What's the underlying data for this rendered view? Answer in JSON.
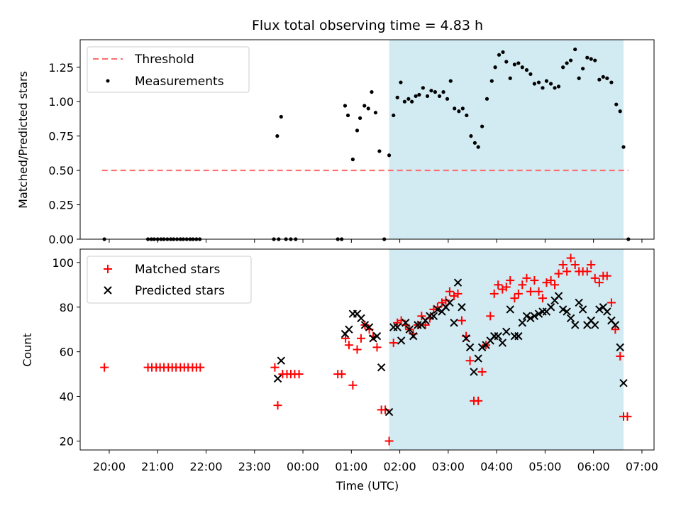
{
  "title": "Flux total observing time = 4.83 h",
  "colors": {
    "threshold": "#ff6b6b",
    "measurement": "#000000",
    "matched": "#ff0000",
    "predicted": "#000000",
    "span": "#add8e6"
  },
  "chart_data": [
    {
      "type": "scatter",
      "title": "Flux total observing time = 4.83 h",
      "xlabel": "",
      "ylabel": "Matched/Predicted stars",
      "x_unit": "hours relative to 00:00 UTC",
      "xlim": [
        -4.6,
        7.25
      ],
      "ylim": [
        0,
        1.45
      ],
      "yticks": [
        "0.00",
        "0.25",
        "0.50",
        "0.75",
        "1.00",
        "1.25"
      ],
      "xtick_values": [
        -4,
        -3,
        -2,
        -1,
        0,
        1,
        2,
        3,
        4,
        5,
        6,
        7
      ],
      "highlight_span": [
        1.78,
        6.62
      ],
      "legend_position": "upper left",
      "threshold": {
        "name": "Threshold",
        "value": 0.5,
        "x_range": [
          -4.15,
          6.72
        ]
      },
      "series": [
        {
          "name": "Measurements",
          "points": [
            [
              -4.1,
              0
            ],
            [
              -3.2,
              0
            ],
            [
              -3.13,
              0
            ],
            [
              -3.07,
              0
            ],
            [
              -3.0,
              0
            ],
            [
              -2.93,
              0
            ],
            [
              -2.87,
              0
            ],
            [
              -2.8,
              0
            ],
            [
              -2.73,
              0
            ],
            [
              -2.67,
              0
            ],
            [
              -2.6,
              0
            ],
            [
              -2.53,
              0
            ],
            [
              -2.47,
              0
            ],
            [
              -2.4,
              0
            ],
            [
              -2.33,
              0
            ],
            [
              -2.27,
              0
            ],
            [
              -2.2,
              0
            ],
            [
              -2.13,
              0
            ],
            [
              -0.6,
              0
            ],
            [
              -0.5,
              0
            ],
            [
              -0.35,
              0
            ],
            [
              -0.25,
              0
            ],
            [
              -0.15,
              0
            ],
            [
              0.72,
              0
            ],
            [
              0.8,
              0
            ],
            [
              1.68,
              0
            ],
            [
              6.72,
              0
            ],
            [
              -0.53,
              0.75
            ],
            [
              -0.45,
              0.89
            ],
            [
              0.87,
              0.97
            ],
            [
              0.93,
              0.9
            ],
            [
              1.03,
              0.58
            ],
            [
              1.12,
              0.79
            ],
            [
              1.18,
              0.88
            ],
            [
              1.27,
              0.97
            ],
            [
              1.35,
              0.95
            ],
            [
              1.42,
              1.07
            ],
            [
              1.5,
              0.92
            ],
            [
              1.58,
              0.64
            ],
            [
              1.78,
              0.61
            ],
            [
              1.87,
              0.9
            ],
            [
              1.95,
              1.03
            ],
            [
              2.02,
              1.14
            ],
            [
              2.1,
              1.0
            ],
            [
              2.18,
              1.02
            ],
            [
              2.25,
              1.0
            ],
            [
              2.33,
              1.04
            ],
            [
              2.4,
              1.05
            ],
            [
              2.48,
              1.1
            ],
            [
              2.57,
              1.04
            ],
            [
              2.65,
              1.08
            ],
            [
              2.73,
              1.07
            ],
            [
              2.82,
              1.04
            ],
            [
              2.9,
              1.07
            ],
            [
              2.98,
              1.02
            ],
            [
              3.05,
              1.15
            ],
            [
              3.13,
              0.95
            ],
            [
              3.22,
              0.93
            ],
            [
              3.3,
              0.95
            ],
            [
              3.38,
              0.9
            ],
            [
              3.47,
              0.75
            ],
            [
              3.55,
              0.7
            ],
            [
              3.62,
              0.67
            ],
            [
              3.7,
              0.82
            ],
            [
              3.8,
              1.02
            ],
            [
              3.9,
              1.15
            ],
            [
              3.97,
              1.25
            ],
            [
              4.05,
              1.34
            ],
            [
              4.13,
              1.36
            ],
            [
              4.2,
              1.29
            ],
            [
              4.28,
              1.17
            ],
            [
              4.37,
              1.27
            ],
            [
              4.45,
              1.28
            ],
            [
              4.53,
              1.25
            ],
            [
              4.62,
              1.23
            ],
            [
              4.7,
              1.2
            ],
            [
              4.78,
              1.13
            ],
            [
              4.87,
              1.14
            ],
            [
              4.95,
              1.1
            ],
            [
              5.03,
              1.15
            ],
            [
              5.12,
              1.13
            ],
            [
              5.2,
              1.1
            ],
            [
              5.28,
              1.11
            ],
            [
              5.37,
              1.25
            ],
            [
              5.45,
              1.28
            ],
            [
              5.53,
              1.3
            ],
            [
              5.62,
              1.38
            ],
            [
              5.7,
              1.17
            ],
            [
              5.78,
              1.24
            ],
            [
              5.87,
              1.32
            ],
            [
              5.95,
              1.31
            ],
            [
              6.03,
              1.3
            ],
            [
              6.12,
              1.16
            ],
            [
              6.2,
              1.18
            ],
            [
              6.28,
              1.17
            ],
            [
              6.37,
              1.14
            ],
            [
              6.47,
              0.98
            ],
            [
              6.55,
              0.93
            ],
            [
              6.62,
              0.67
            ]
          ]
        }
      ]
    },
    {
      "type": "scatter",
      "xlabel": "Time (UTC)",
      "ylabel": "Count",
      "x_unit": "hours relative to 00:00 UTC",
      "xlim": [
        -4.6,
        7.25
      ],
      "ylim": [
        16,
        106
      ],
      "yticks": [
        "20",
        "40",
        "60",
        "80",
        "100"
      ],
      "xticks": [
        "20:00",
        "21:00",
        "22:00",
        "23:00",
        "00:00",
        "01:00",
        "02:00",
        "03:00",
        "04:00",
        "05:00",
        "06:00",
        "07:00"
      ],
      "xtick_values": [
        -4,
        -3,
        -2,
        -1,
        0,
        1,
        2,
        3,
        4,
        5,
        6,
        7
      ],
      "highlight_span": [
        1.78,
        6.62
      ],
      "legend_position": "upper left",
      "series": [
        {
          "name": "Matched stars",
          "marker": "+",
          "points": [
            [
              -4.1,
              53
            ],
            [
              -3.2,
              53
            ],
            [
              -3.12,
              53
            ],
            [
              -3.03,
              53
            ],
            [
              -2.95,
              53
            ],
            [
              -2.87,
              53
            ],
            [
              -2.78,
              53
            ],
            [
              -2.7,
              53
            ],
            [
              -2.62,
              53
            ],
            [
              -2.53,
              53
            ],
            [
              -2.45,
              53
            ],
            [
              -2.37,
              53
            ],
            [
              -2.28,
              53
            ],
            [
              -2.2,
              53
            ],
            [
              -2.12,
              53
            ],
            [
              -0.58,
              53
            ],
            [
              -0.52,
              36
            ],
            [
              -0.42,
              50
            ],
            [
              -0.33,
              50
            ],
            [
              -0.25,
              50
            ],
            [
              -0.17,
              50
            ],
            [
              -0.08,
              50
            ],
            [
              0.72,
              50
            ],
            [
              0.8,
              50
            ],
            [
              0.88,
              66
            ],
            [
              0.95,
              63
            ],
            [
              1.03,
              45
            ],
            [
              1.12,
              61
            ],
            [
              1.2,
              66
            ],
            [
              1.28,
              72
            ],
            [
              1.37,
              70
            ],
            [
              1.45,
              67
            ],
            [
              1.53,
              62
            ],
            [
              1.62,
              34
            ],
            [
              1.7,
              34
            ],
            [
              1.78,
              20
            ],
            [
              1.87,
              64
            ],
            [
              1.95,
              73
            ],
            [
              2.03,
              74
            ],
            [
              2.12,
              72
            ],
            [
              2.2,
              70
            ],
            [
              2.28,
              68
            ],
            [
              2.37,
              72
            ],
            [
              2.45,
              76
            ],
            [
              2.53,
              72
            ],
            [
              2.62,
              75
            ],
            [
              2.7,
              79
            ],
            [
              2.78,
              80
            ],
            [
              2.87,
              82
            ],
            [
              2.95,
              83
            ],
            [
              3.03,
              87
            ],
            [
              3.12,
              85
            ],
            [
              3.2,
              86
            ],
            [
              3.28,
              74
            ],
            [
              3.37,
              67
            ],
            [
              3.45,
              56
            ],
            [
              3.53,
              38
            ],
            [
              3.62,
              38
            ],
            [
              3.7,
              51
            ],
            [
              3.78,
              63
            ],
            [
              3.87,
              76
            ],
            [
              3.95,
              86
            ],
            [
              4.03,
              90
            ],
            [
              4.12,
              88
            ],
            [
              4.2,
              89
            ],
            [
              4.28,
              92
            ],
            [
              4.37,
              84
            ],
            [
              4.45,
              86
            ],
            [
              4.53,
              90
            ],
            [
              4.62,
              93
            ],
            [
              4.7,
              87
            ],
            [
              4.78,
              92
            ],
            [
              4.87,
              87
            ],
            [
              4.95,
              84
            ],
            [
              5.03,
              91
            ],
            [
              5.12,
              92
            ],
            [
              5.2,
              90
            ],
            [
              5.28,
              95
            ],
            [
              5.37,
              99
            ],
            [
              5.45,
              96
            ],
            [
              5.53,
              102
            ],
            [
              5.62,
              99
            ],
            [
              5.7,
              96
            ],
            [
              5.78,
              96
            ],
            [
              5.87,
              96
            ],
            [
              5.95,
              99
            ],
            [
              6.03,
              93
            ],
            [
              6.12,
              91
            ],
            [
              6.2,
              94
            ],
            [
              6.28,
              94
            ],
            [
              6.37,
              82
            ],
            [
              6.45,
              70
            ],
            [
              6.55,
              58
            ],
            [
              6.62,
              31
            ],
            [
              6.7,
              31
            ]
          ]
        },
        {
          "name": "Predicted stars",
          "marker": "x",
          "points": [
            [
              -0.52,
              48
            ],
            [
              -0.45,
              56
            ],
            [
              0.87,
              68
            ],
            [
              0.95,
              70
            ],
            [
              1.03,
              77
            ],
            [
              1.12,
              77
            ],
            [
              1.2,
              75
            ],
            [
              1.28,
              72
            ],
            [
              1.37,
              71
            ],
            [
              1.45,
              66
            ],
            [
              1.53,
              67
            ],
            [
              1.62,
              53
            ],
            [
              1.78,
              33
            ],
            [
              1.87,
              71
            ],
            [
              1.95,
              71
            ],
            [
              2.03,
              65
            ],
            [
              2.12,
              73
            ],
            [
              2.2,
              70
            ],
            [
              2.28,
              67
            ],
            [
              2.37,
              72
            ],
            [
              2.45,
              72
            ],
            [
              2.53,
              74
            ],
            [
              2.62,
              76
            ],
            [
              2.7,
              76
            ],
            [
              2.78,
              79
            ],
            [
              2.87,
              78
            ],
            [
              2.95,
              80
            ],
            [
              3.03,
              82
            ],
            [
              3.12,
              73
            ],
            [
              3.2,
              91
            ],
            [
              3.28,
              80
            ],
            [
              3.37,
              66
            ],
            [
              3.45,
              62
            ],
            [
              3.53,
              51
            ],
            [
              3.62,
              57
            ],
            [
              3.7,
              62
            ],
            [
              3.78,
              63
            ],
            [
              3.87,
              65
            ],
            [
              3.95,
              67
            ],
            [
              4.03,
              67
            ],
            [
              4.12,
              64
            ],
            [
              4.2,
              69
            ],
            [
              4.28,
              79
            ],
            [
              4.37,
              67
            ],
            [
              4.45,
              67
            ],
            [
              4.53,
              73
            ],
            [
              4.62,
              76
            ],
            [
              4.7,
              75
            ],
            [
              4.78,
              76
            ],
            [
              4.87,
              77
            ],
            [
              4.95,
              78
            ],
            [
              5.03,
              78
            ],
            [
              5.12,
              80
            ],
            [
              5.2,
              83
            ],
            [
              5.28,
              85
            ],
            [
              5.37,
              79
            ],
            [
              5.45,
              78
            ],
            [
              5.53,
              75
            ],
            [
              5.62,
              72
            ],
            [
              5.7,
              82
            ],
            [
              5.78,
              79
            ],
            [
              5.87,
              72
            ],
            [
              5.95,
              74
            ],
            [
              6.03,
              72
            ],
            [
              6.12,
              79
            ],
            [
              6.2,
              80
            ],
            [
              6.28,
              78
            ],
            [
              6.37,
              74
            ],
            [
              6.45,
              72
            ],
            [
              6.55,
              62
            ],
            [
              6.62,
              46
            ]
          ]
        }
      ]
    }
  ]
}
